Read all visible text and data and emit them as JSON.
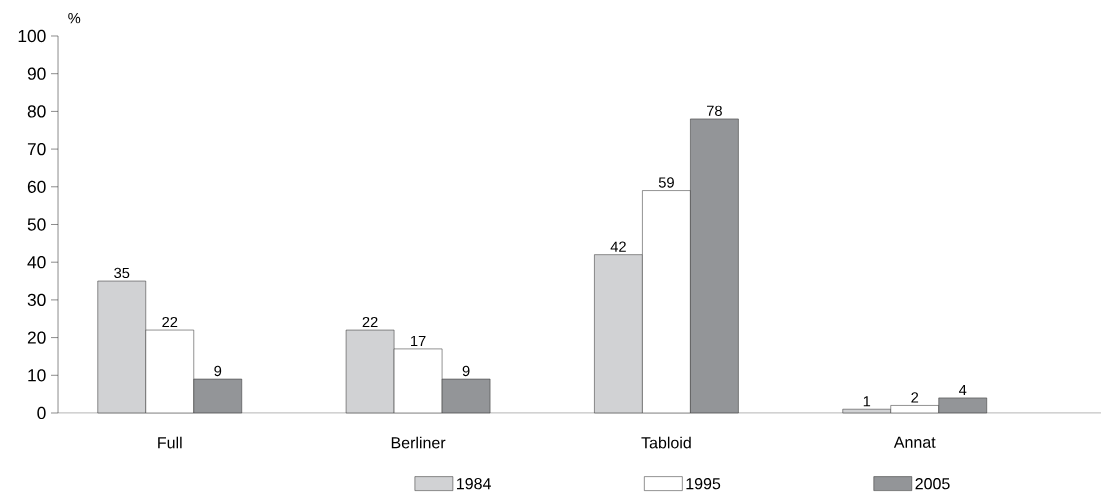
{
  "chart_data": {
    "type": "bar",
    "ylabel": "%",
    "categories": [
      "Full",
      "Berliner",
      "Tabloid",
      "Annat"
    ],
    "series": [
      {
        "name": "1984",
        "color": "#d1d2d4",
        "values": [
          35,
          22,
          42,
          1
        ]
      },
      {
        "name": "1995",
        "color": "#ffffff",
        "values": [
          22,
          17,
          59,
          2
        ]
      },
      {
        "name": "2005",
        "color": "#939598",
        "values": [
          9,
          9,
          78,
          4
        ]
      }
    ],
    "ylim": [
      0,
      100
    ],
    "yticks": [
      0,
      10,
      20,
      30,
      40,
      50,
      60,
      70,
      80,
      90,
      100
    ],
    "data_labels": true,
    "grid": false,
    "legend": "bottom"
  }
}
